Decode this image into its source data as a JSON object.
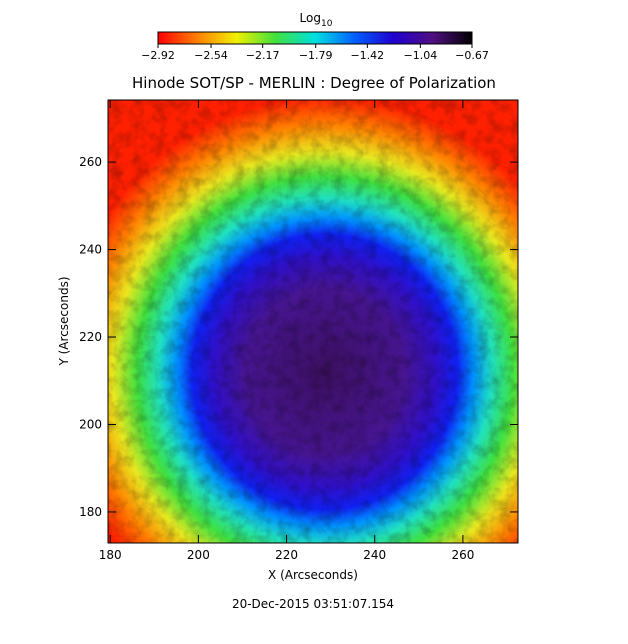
{
  "chart_data": {
    "type": "heatmap",
    "title": "Hinode SOT/SP - MERLIN : Degree of Polarization",
    "xlabel": "X (Arcseconds)",
    "ylabel": "Y (Arcseconds)",
    "xlim": [
      179.5,
      272.5
    ],
    "xticks": [
      180,
      200,
      220,
      240,
      260
    ],
    "ylim": [
      172.9,
      274.2
    ],
    "yticks": [
      180,
      200,
      220,
      240,
      260
    ],
    "colorbar_label": "Log",
    "colorbar_label_subscript": "10",
    "colorbar_lim": [
      -2.92,
      -0.67
    ],
    "colorbar_ticks": [
      {
        "value": -2.92,
        "label": "−2.92"
      },
      {
        "value": -2.54,
        "label": "−2.54"
      },
      {
        "value": -2.17,
        "label": "−2.17"
      },
      {
        "value": -1.79,
        "label": "−1.79"
      },
      {
        "value": -1.42,
        "label": "−1.42"
      },
      {
        "value": -1.04,
        "label": "−1.04"
      },
      {
        "value": -0.67,
        "label": "−0.67"
      }
    ],
    "colormap": [
      "#ff0000",
      "#ff8000",
      "#f0f000",
      "#40e040",
      "#00e0e0",
      "#0060ff",
      "#2000d0",
      "#501080",
      "#000000"
    ],
    "timestamp": "20-Dec-2015 03:51:07.154"
  }
}
